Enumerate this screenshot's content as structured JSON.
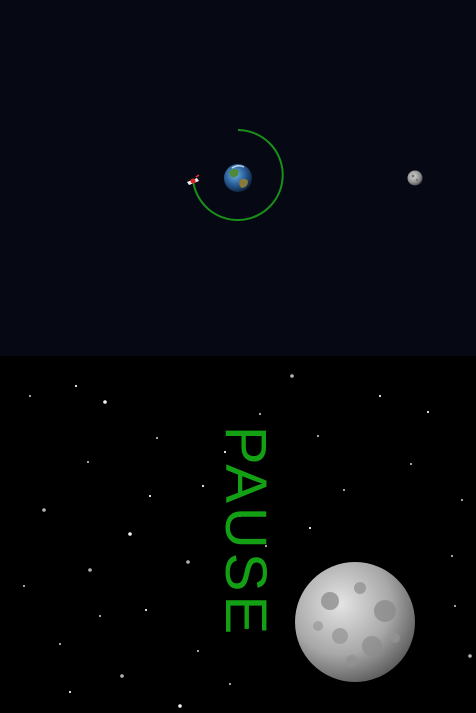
{
  "game": {
    "top_screen": {
      "bodies": [
        "earth",
        "moon",
        "spaceship"
      ],
      "trajectory_color": "#1a8f1a"
    },
    "bottom_screen": {
      "status_text": "PAUSE",
      "status_color": "#14a014",
      "decorations": [
        "star-field",
        "moon"
      ]
    }
  },
  "icons": {
    "earth": "earth-icon",
    "moon": "moon-icon",
    "spaceship": "spaceship-icon",
    "large_moon": "large-moon-icon"
  },
  "colors": {
    "top_background": "#060814",
    "bottom_background": "#000000",
    "trajectory": "#1a8f1a",
    "pause_text": "#14a014"
  }
}
